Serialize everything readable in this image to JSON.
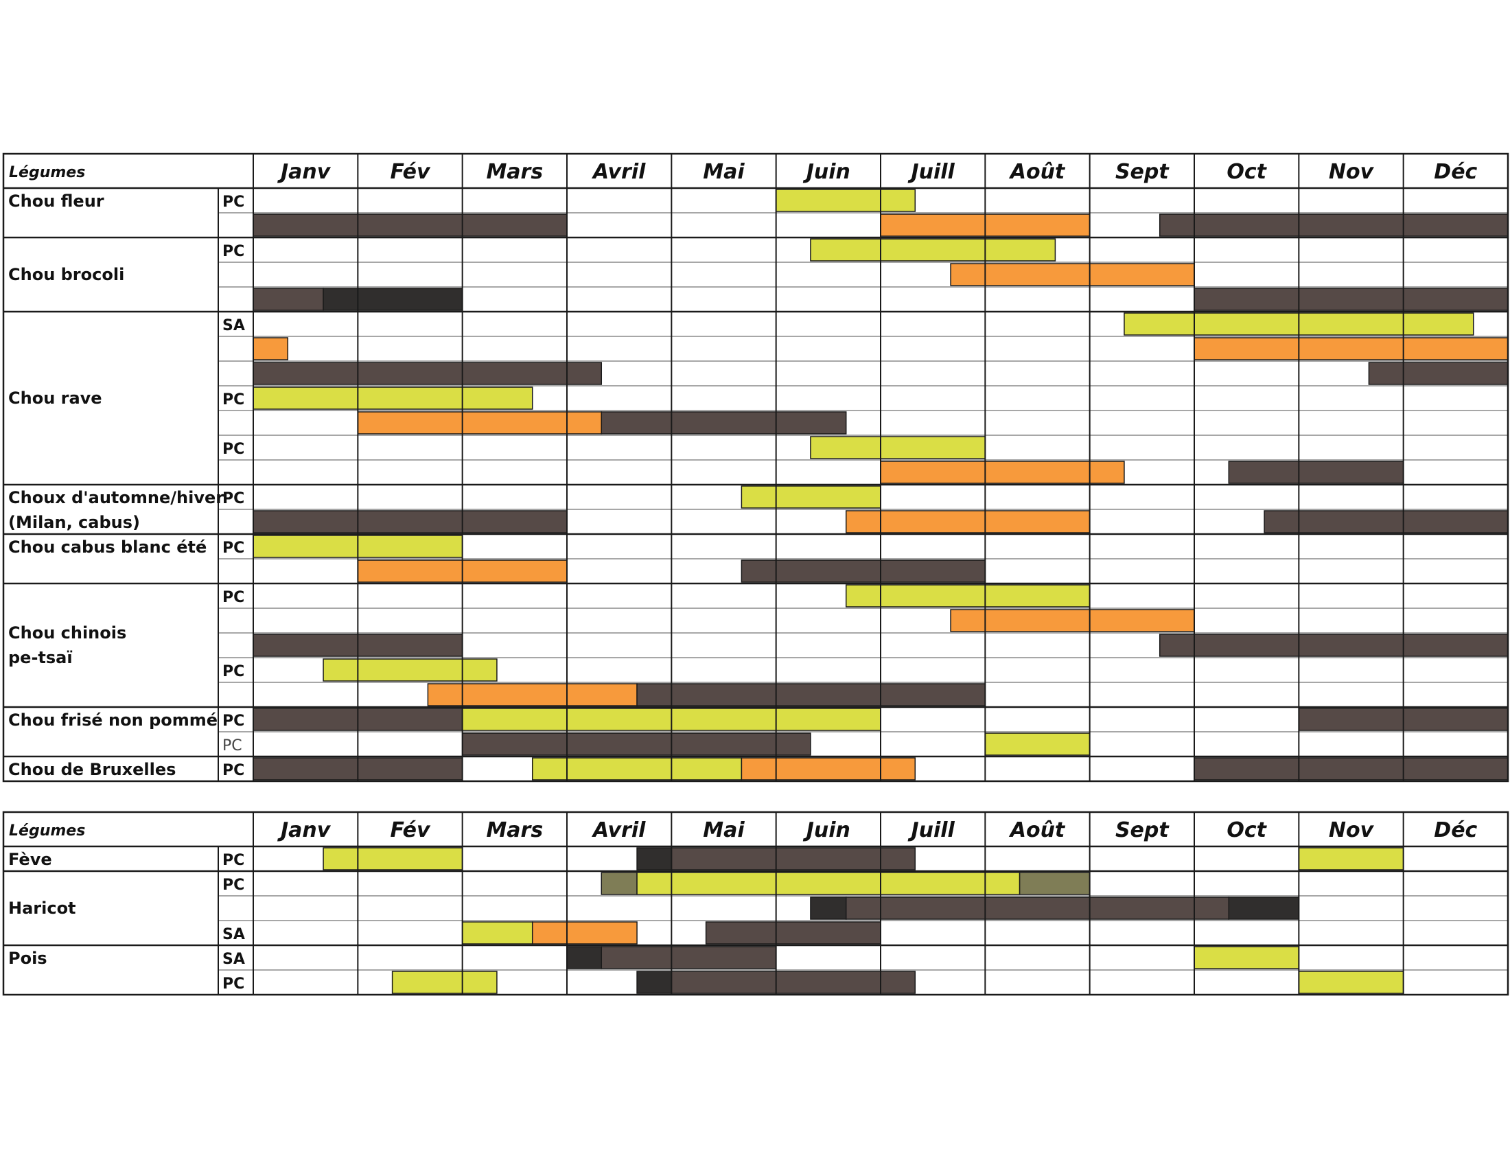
{
  "chart_data": [
    {
      "type": "gantt",
      "header_label": "Légumes",
      "months": [
        "Janv",
        "Fév",
        "Mars",
        "Avril",
        "Mai",
        "Juin",
        "Juill",
        "Août",
        "Sept",
        "Oct",
        "Nov",
        "Déc"
      ],
      "colors": {
        "lime": "#dade45",
        "orange": "#f79a3c",
        "brown": "#564a47",
        "dark": "#302e2d",
        "olive": "#7f7d56"
      },
      "crops": [
        {
          "name": [
            "Chou fleur"
          ],
          "rows": [
            {
              "mode": "PC",
              "bars": [
                {
                  "start": 5,
                  "end": 6.33,
                  "color": "lime"
                }
              ]
            },
            {
              "mode": "",
              "bars": [
                {
                  "start": 0,
                  "end": 3,
                  "color": "brown"
                },
                {
                  "start": 6,
                  "end": 8,
                  "color": "orange"
                },
                {
                  "start": 8.67,
                  "end": 12,
                  "color": "brown"
                }
              ]
            }
          ]
        },
        {
          "name": [
            "Chou brocoli"
          ],
          "rows": [
            {
              "mode": "PC",
              "bars": [
                {
                  "start": 5.33,
                  "end": 7.67,
                  "color": "lime"
                }
              ]
            },
            {
              "mode": "",
              "bars": [
                {
                  "start": 6.67,
                  "end": 9,
                  "color": "orange"
                }
              ]
            },
            {
              "mode": "",
              "bars": [
                {
                  "start": 0,
                  "end": 0.67,
                  "color": "brown"
                },
                {
                  "start": 0.67,
                  "end": 2,
                  "color": "dark"
                },
                {
                  "start": 9,
                  "end": 12,
                  "color": "brown"
                }
              ]
            }
          ]
        },
        {
          "name": [
            "Chou rave"
          ],
          "rows": [
            {
              "mode": "SA",
              "bars": [
                {
                  "start": 8.33,
                  "end": 11.67,
                  "color": "lime"
                }
              ]
            },
            {
              "mode": "",
              "bars": [
                {
                  "start": 0,
                  "end": 0.33,
                  "color": "orange"
                },
                {
                  "start": 9,
                  "end": 12,
                  "color": "orange"
                }
              ]
            },
            {
              "mode": "",
              "bars": [
                {
                  "start": 0,
                  "end": 3.33,
                  "color": "brown"
                },
                {
                  "start": 10.67,
                  "end": 12,
                  "color": "brown"
                }
              ]
            },
            {
              "mode": "PC",
              "bars": [
                {
                  "start": 0,
                  "end": 2.67,
                  "color": "lime"
                }
              ]
            },
            {
              "mode": "",
              "bars": [
                {
                  "start": 1,
                  "end": 3.33,
                  "color": "orange"
                },
                {
                  "start": 3.33,
                  "end": 5.67,
                  "color": "brown"
                }
              ]
            },
            {
              "mode": "PC",
              "bars": [
                {
                  "start": 5.33,
                  "end": 7,
                  "color": "lime"
                }
              ]
            },
            {
              "mode": "",
              "bars": [
                {
                  "start": 6,
                  "end": 8.33,
                  "color": "orange"
                },
                {
                  "start": 9.33,
                  "end": 11,
                  "color": "brown"
                }
              ]
            }
          ]
        },
        {
          "name": [
            "Choux d'automne/hiver",
            " (Milan, cabus)"
          ],
          "rows": [
            {
              "mode": "PC",
              "bars": [
                {
                  "start": 4.67,
                  "end": 6,
                  "color": "lime"
                }
              ]
            },
            {
              "mode": "",
              "bars": [
                {
                  "start": 0,
                  "end": 3,
                  "color": "brown"
                },
                {
                  "start": 5.67,
                  "end": 8,
                  "color": "orange"
                },
                {
                  "start": 9.67,
                  "end": 12,
                  "color": "brown"
                }
              ]
            }
          ]
        },
        {
          "name": [
            "Chou cabus blanc été"
          ],
          "rows": [
            {
              "mode": "PC",
              "bars": [
                {
                  "start": 0,
                  "end": 2,
                  "color": "lime"
                }
              ]
            },
            {
              "mode": "",
              "bars": [
                {
                  "start": 1,
                  "end": 3,
                  "color": "orange"
                },
                {
                  "start": 4.67,
                  "end": 7,
                  "color": "brown"
                }
              ]
            }
          ]
        },
        {
          "name": [
            "Chou chinois",
            "pe-tsaï"
          ],
          "rows": [
            {
              "mode": "PC",
              "bars": [
                {
                  "start": 5.67,
                  "end": 8,
                  "color": "lime"
                }
              ]
            },
            {
              "mode": "",
              "bars": [
                {
                  "start": 6.67,
                  "end": 9,
                  "color": "orange"
                }
              ]
            },
            {
              "mode": "",
              "bars": [
                {
                  "start": 0,
                  "end": 2,
                  "color": "brown"
                },
                {
                  "start": 8.67,
                  "end": 12,
                  "color": "brown"
                }
              ]
            },
            {
              "mode": "PC",
              "bars": [
                {
                  "start": 0.67,
                  "end": 2.33,
                  "color": "lime"
                }
              ]
            },
            {
              "mode": "",
              "bars": [
                {
                  "start": 1.67,
                  "end": 3.67,
                  "color": "orange"
                },
                {
                  "start": 3.67,
                  "end": 7,
                  "color": "brown"
                }
              ]
            }
          ]
        },
        {
          "name": [
            "Chou frisé non pommé"
          ],
          "rows": [
            {
              "mode": "PC",
              "bars": [
                {
                  "start": 0,
                  "end": 2,
                  "color": "brown"
                },
                {
                  "start": 2,
                  "end": 6,
                  "color": "lime"
                },
                {
                  "start": 10,
                  "end": 12,
                  "color": "brown"
                }
              ]
            },
            {
              "mode": "PC",
              "light": true,
              "bars": [
                {
                  "start": 2,
                  "end": 5.33,
                  "color": "brown"
                },
                {
                  "start": 7,
                  "end": 8,
                  "color": "lime"
                }
              ]
            }
          ]
        },
        {
          "name": [
            "Chou de Bruxelles"
          ],
          "rows": [
            {
              "mode": "PC",
              "bars": [
                {
                  "start": 0,
                  "end": 2,
                  "color": "brown"
                },
                {
                  "start": 2.67,
                  "end": 4.67,
                  "color": "lime"
                },
                {
                  "start": 4.67,
                  "end": 6.33,
                  "color": "orange"
                },
                {
                  "start": 9,
                  "end": 12,
                  "color": "brown"
                }
              ]
            }
          ]
        }
      ]
    },
    {
      "type": "gantt",
      "header_label": "Légumes",
      "months": [
        "Janv",
        "Fév",
        "Mars",
        "Avril",
        "Mai",
        "Juin",
        "Juill",
        "Août",
        "Sept",
        "Oct",
        "Nov",
        "Déc"
      ],
      "colors": {
        "lime": "#dade45",
        "orange": "#f79a3c",
        "brown": "#564a47",
        "dark": "#302e2d",
        "olive": "#7f7d56"
      },
      "crops": [
        {
          "name": [
            "Fève"
          ],
          "rows": [
            {
              "mode": "PC",
              "bars": [
                {
                  "start": 0.67,
                  "end": 2,
                  "color": "lime"
                },
                {
                  "start": 3.67,
                  "end": 4,
                  "color": "dark"
                },
                {
                  "start": 4,
                  "end": 6.33,
                  "color": "brown"
                },
                {
                  "start": 10,
                  "end": 11,
                  "color": "lime"
                }
              ]
            }
          ]
        },
        {
          "name": [
            "Haricot"
          ],
          "rows": [
            {
              "mode": "PC",
              "bars": [
                {
                  "start": 3.33,
                  "end": 3.67,
                  "color": "olive"
                },
                {
                  "start": 3.67,
                  "end": 7.33,
                  "color": "lime"
                },
                {
                  "start": 7.33,
                  "end": 8,
                  "color": "olive"
                }
              ]
            },
            {
              "mode": "",
              "bars": [
                {
                  "start": 5.33,
                  "end": 5.67,
                  "color": "dark"
                },
                {
                  "start": 5.67,
                  "end": 9.33,
                  "color": "brown"
                },
                {
                  "start": 9.33,
                  "end": 10,
                  "color": "dark"
                }
              ]
            },
            {
              "mode": "SA",
              "bars": [
                {
                  "start": 2,
                  "end": 2.67,
                  "color": "lime"
                },
                {
                  "start": 2.67,
                  "end": 3.67,
                  "color": "orange"
                },
                {
                  "start": 4.33,
                  "end": 6,
                  "color": "brown"
                }
              ]
            }
          ]
        },
        {
          "name": [
            "Pois"
          ],
          "rows": [
            {
              "mode": "SA",
              "bars": [
                {
                  "start": 3,
                  "end": 3.33,
                  "color": "dark"
                },
                {
                  "start": 3.33,
                  "end": 5,
                  "color": "brown"
                },
                {
                  "start": 9,
                  "end": 10,
                  "color": "lime"
                }
              ]
            },
            {
              "mode": "PC",
              "bars": [
                {
                  "start": 1.33,
                  "end": 2.33,
                  "color": "lime"
                },
                {
                  "start": 3.67,
                  "end": 4,
                  "color": "dark"
                },
                {
                  "start": 4,
                  "end": 6.33,
                  "color": "brown"
                },
                {
                  "start": 10,
                  "end": 11,
                  "color": "lime"
                }
              ]
            }
          ]
        }
      ]
    }
  ]
}
